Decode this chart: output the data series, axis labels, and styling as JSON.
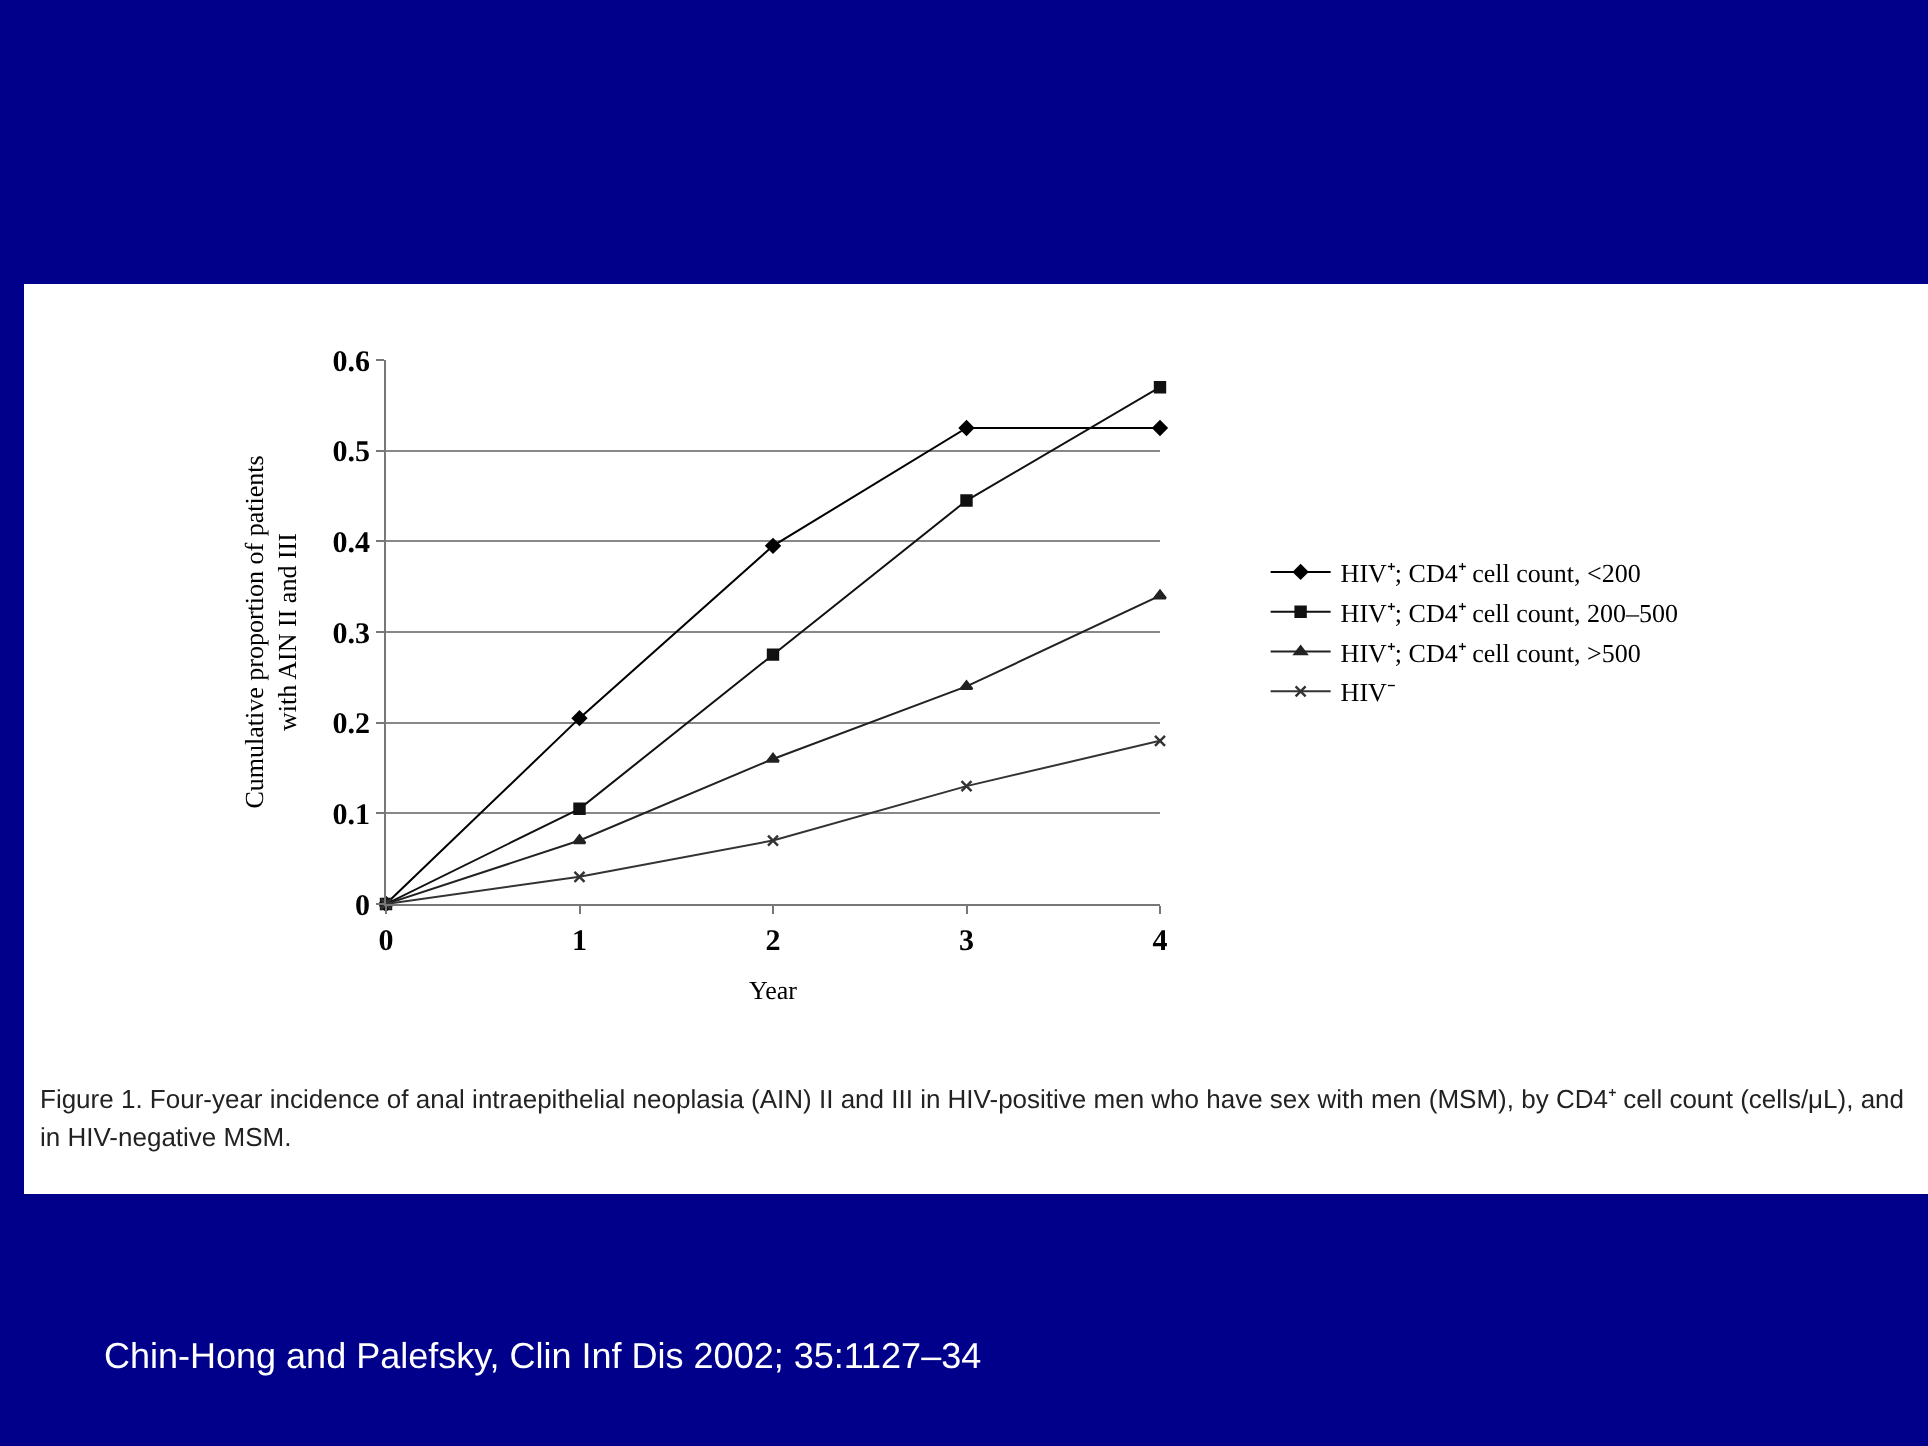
{
  "chart_data": {
    "type": "line",
    "xlabel": "Year",
    "ylabel": "Cumulative proportion of patients with AIN II and III",
    "x": [
      0,
      1,
      2,
      3,
      4
    ],
    "series": [
      {
        "name": "HIV⁺; CD4⁺ cell count, <200",
        "color": "#000000",
        "marker": "diamond",
        "values": [
          0,
          0.205,
          0.395,
          0.525,
          0.525
        ]
      },
      {
        "name": "HIV⁺; CD4⁺ cell count, 200–500",
        "color": "#111111",
        "marker": "square",
        "values": [
          0,
          0.105,
          0.275,
          0.445,
          0.57
        ]
      },
      {
        "name": "HIV⁺; CD4⁺ cell count, >500",
        "color": "#222222",
        "marker": "triangle",
        "values": [
          0,
          0.07,
          0.16,
          0.24,
          0.34
        ]
      },
      {
        "name": "HIV⁻",
        "color": "#333333",
        "marker": "cross",
        "values": [
          0,
          0.03,
          0.07,
          0.13,
          0.18
        ]
      }
    ],
    "xlim": [
      0,
      4
    ],
    "xticks": [
      0,
      1,
      2,
      3,
      4
    ],
    "ylim": [
      0,
      0.6
    ],
    "yticks": [
      0,
      0.1,
      0.2,
      0.3,
      0.4,
      0.5,
      0.6
    ],
    "grid": "y",
    "legend": "right",
    "line_style": "solid",
    "annotations": [
      "Figure 1.    Four-year incidence of anal intraepithelial neoplasia (AIN) II and III in HIV-positive men who have sex with men (MSM), by CD4⁺ cell count (cells/μL), and in HIV-negative MSM.",
      "Chin-Hong and Palefsky, Clin Inf Dis 2002; 35:1127–34"
    ]
  }
}
